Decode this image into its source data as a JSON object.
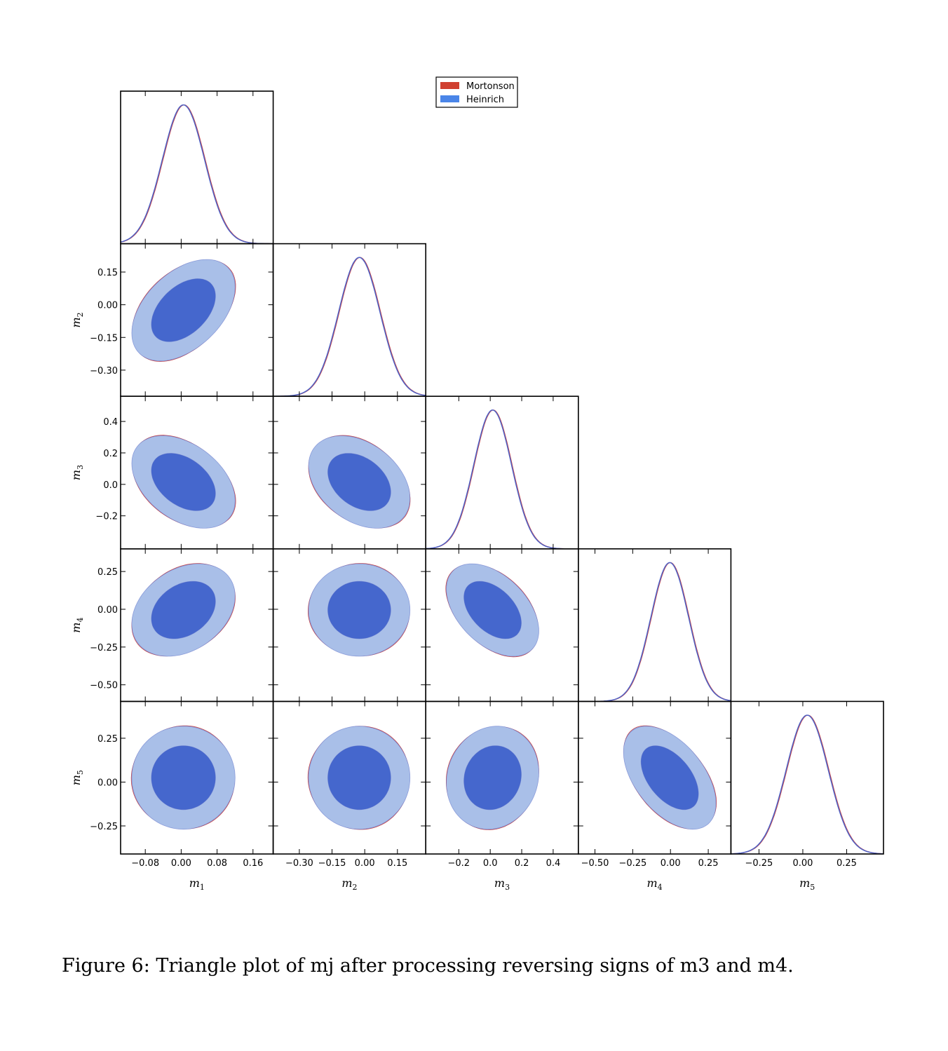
{
  "caption": "Figure 6: Triangle plot of mj after processing reversing signs of m3 and m4.",
  "legend": {
    "placement": "top-center",
    "entries": [
      {
        "label": "Mortonson",
        "color": "#d04030"
      },
      {
        "label": "Heinrich",
        "color": "#4a85e8"
      }
    ]
  },
  "colors": {
    "contour_outer": "#a9bfe8",
    "contour_inner": "#4567cd",
    "line_mortonson": "#cc4444",
    "line_heinrich": "#4f63c6"
  },
  "chart_data": {
    "type": "triangle",
    "parameters": [
      {
        "name": "m",
        "sub": "1",
        "range": [
          -0.135,
          0.205
        ],
        "ticks": [
          -0.08,
          0.0,
          0.08,
          0.16
        ],
        "tick_labels": [
          "−0.08",
          "0.00",
          "0.08",
          "0.16"
        ],
        "mean": 0.005,
        "sigma": 0.047
      },
      {
        "name": "m",
        "sub": "2",
        "range": [
          -0.42,
          0.28
        ],
        "ticks": [
          -0.3,
          -0.15,
          0.0,
          0.15
        ],
        "tick_labels": [
          "−0.30",
          "−0.15",
          "0.00",
          "0.15"
        ],
        "mean": -0.025,
        "sigma": 0.095
      },
      {
        "name": "m",
        "sub": "3",
        "range": [
          -0.41,
          0.56
        ],
        "ticks": [
          -0.2,
          0.0,
          0.2,
          0.4
        ],
        "tick_labels": [
          "−0.2",
          "0.0",
          "0.2",
          "0.4"
        ],
        "mean": 0.015,
        "sigma": 0.12
      },
      {
        "name": "m",
        "sub": "4",
        "range": [
          -0.61,
          0.4
        ],
        "ticks": [
          -0.5,
          -0.25,
          0.0,
          0.25
        ],
        "tick_labels": [
          "−0.50",
          "−0.25",
          "0.00",
          "0.25"
        ],
        "mean": -0.005,
        "sigma": 0.125
      },
      {
        "name": "m",
        "sub": "5",
        "range": [
          -0.41,
          0.46
        ],
        "ticks": [
          -0.25,
          0.0,
          0.25
        ],
        "tick_labels": [
          "−0.25",
          "0.00",
          "0.25"
        ],
        "mean": 0.025,
        "sigma": 0.12
      }
    ],
    "correlations": [
      {
        "pair": [
          1,
          2
        ],
        "rho": 0.45
      },
      {
        "pair": [
          1,
          3
        ],
        "rho": -0.4
      },
      {
        "pair": [
          2,
          3
        ],
        "rho": -0.35
      },
      {
        "pair": [
          1,
          4
        ],
        "rho": 0.3
      },
      {
        "pair": [
          2,
          4
        ],
        "rho": 0.0
      },
      {
        "pair": [
          3,
          4
        ],
        "rho": -0.45
      },
      {
        "pair": [
          1,
          5
        ],
        "rho": 0.0
      },
      {
        "pair": [
          2,
          5
        ],
        "rho": 0.0
      },
      {
        "pair": [
          3,
          5
        ],
        "rho": 0.1
      },
      {
        "pair": [
          4,
          5
        ],
        "rho": -0.5
      }
    ],
    "series": [
      {
        "name": "Mortonson"
      },
      {
        "name": "Heinrich"
      }
    ],
    "contour_levels": [
      "68%",
      "95%"
    ],
    "grid": false
  }
}
